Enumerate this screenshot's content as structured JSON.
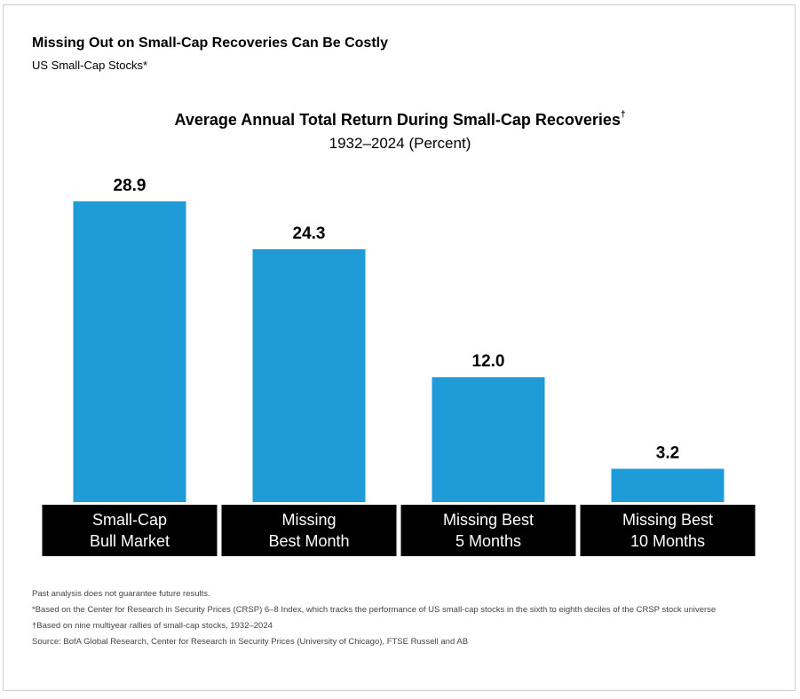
{
  "header": {
    "title": "Missing Out on Small-Cap Recoveries Can Be Costly",
    "subtitle": "US Small-Cap Stocks*"
  },
  "chart_data": {
    "type": "bar",
    "title": "Average Annual Total Return During Small-Cap Recoveries",
    "title_marker": "†",
    "subtitle": "1932–2024 (Percent)",
    "categories": [
      [
        "Small-Cap",
        "Bull Market"
      ],
      [
        "Missing",
        "Best Month"
      ],
      [
        "Missing Best",
        "5 Months"
      ],
      [
        "Missing Best",
        "10 Months"
      ]
    ],
    "values": [
      28.9,
      24.3,
      12.0,
      3.2
    ],
    "value_labels": [
      "28.9",
      "24.3",
      "12.0",
      "3.2"
    ],
    "ylim": [
      0,
      28.9
    ],
    "grid": false,
    "bar_color": "#1f9bd7",
    "label_bg_color": "#000000"
  },
  "notes": {
    "disclaimer": "Past analysis does not guarantee future results.",
    "footnote_star": "*Based on the Center for Research in Security Prices (CRSP) 6–8 Index, which tracks the performance of US small-cap stocks in the sixth to eighth deciles of the CRSP stock universe",
    "footnote_dagger": "†Based on nine multiyear rallies of small-cap stocks, 1932–2024",
    "source": "Source: BofA Global Research, Center for Research in Security Prices (University of Chicago), FTSE Russell and AB"
  }
}
